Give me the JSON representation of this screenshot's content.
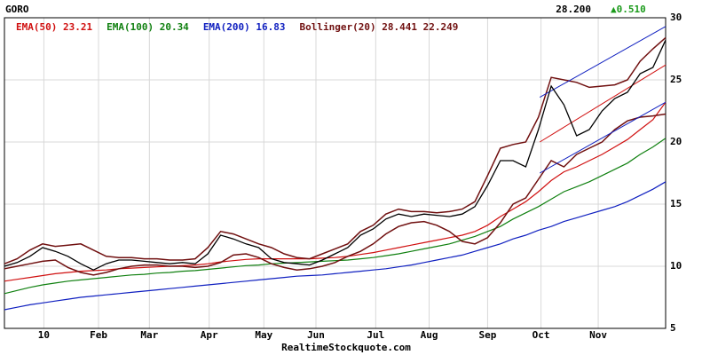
{
  "chart_data": {
    "type": "stock",
    "ticker": "GORO",
    "last": "28.200",
    "change": "▲0.510",
    "change_color": "#1a9a1a",
    "footer": "RealtimeStockquote.com",
    "xlim": [
      0,
      52
    ],
    "xticks": [
      {
        "value": 3.1,
        "label": "10"
      },
      {
        "value": 7.4,
        "label": "Feb"
      },
      {
        "value": 11.4,
        "label": "Mar"
      },
      {
        "value": 16.1,
        "label": "Apr"
      },
      {
        "value": 20.4,
        "label": "May"
      },
      {
        "value": 24.5,
        "label": "Jun"
      },
      {
        "value": 29.2,
        "label": "Jul"
      },
      {
        "value": 33.4,
        "label": "Aug"
      },
      {
        "value": 38,
        "label": "Sep"
      },
      {
        "value": 42.2,
        "label": "Oct"
      },
      {
        "value": 46.7,
        "label": "Nov"
      }
    ],
    "ylim": [
      5,
      30
    ],
    "yticks": [
      5,
      10,
      15,
      20,
      25,
      30
    ],
    "grid": true,
    "x": [
      0,
      1,
      2,
      3,
      4,
      5,
      6,
      7,
      8,
      9,
      10,
      11,
      12,
      13,
      14,
      15,
      16,
      17,
      18,
      19,
      20,
      21,
      22,
      23,
      24,
      25,
      26,
      27,
      28,
      29,
      30,
      31,
      32,
      33,
      34,
      35,
      36,
      37,
      38,
      39,
      40,
      41,
      42,
      43,
      44,
      45,
      46,
      47,
      48,
      49,
      50,
      51,
      52
    ],
    "price": {
      "color": "#000000",
      "values": [
        10,
        10.3,
        10.8,
        11.5,
        11.2,
        10.8,
        10.2,
        9.7,
        10.2,
        10.5,
        10.5,
        10.4,
        10.3,
        10.2,
        10.3,
        10.2,
        11,
        12.5,
        12.2,
        11.8,
        11.5,
        10.6,
        10.3,
        10.2,
        10.1,
        10.5,
        11,
        11.5,
        12.5,
        13,
        13.8,
        14.2,
        14,
        14.2,
        14.1,
        14,
        14.2,
        14.8,
        16.5,
        18.5,
        18.5,
        18,
        21,
        24.5,
        23,
        20.5,
        21,
        22.5,
        23.5,
        24,
        25.5,
        26,
        28.2
      ]
    },
    "series": [
      {
        "name": "EMA(50) 23.21",
        "color": "#d01010",
        "values": [
          8.8,
          8.95,
          9.1,
          9.25,
          9.4,
          9.5,
          9.6,
          9.65,
          9.7,
          9.8,
          9.85,
          9.9,
          9.95,
          10,
          10.05,
          10.1,
          10.2,
          10.35,
          10.45,
          10.55,
          10.6,
          10.6,
          10.6,
          10.6,
          10.6,
          10.65,
          10.7,
          10.8,
          10.95,
          11.1,
          11.3,
          11.5,
          11.7,
          11.9,
          12.1,
          12.3,
          12.5,
          12.8,
          13.3,
          14,
          14.6,
          15.2,
          16,
          16.9,
          17.6,
          18,
          18.5,
          19,
          19.6,
          20.2,
          21,
          21.8,
          23.2
        ]
      },
      {
        "name": "EMA(100) 20.34",
        "color": "#108010",
        "values": [
          7.8,
          8.05,
          8.3,
          8.5,
          8.65,
          8.8,
          8.9,
          9,
          9.1,
          9.2,
          9.3,
          9.35,
          9.45,
          9.5,
          9.6,
          9.65,
          9.75,
          9.85,
          9.95,
          10.05,
          10.1,
          10.2,
          10.25,
          10.3,
          10.35,
          10.4,
          10.45,
          10.5,
          10.6,
          10.7,
          10.85,
          11,
          11.2,
          11.4,
          11.6,
          11.8,
          12.1,
          12.4,
          12.8,
          13.2,
          13.8,
          14.3,
          14.8,
          15.4,
          16,
          16.4,
          16.8,
          17.3,
          17.8,
          18.3,
          19,
          19.6,
          20.3
        ]
      },
      {
        "name": "EMA(200) 16.83",
        "color": "#1020c0",
        "values": [
          6.5,
          6.7,
          6.9,
          7.05,
          7.2,
          7.35,
          7.5,
          7.6,
          7.7,
          7.8,
          7.9,
          8,
          8.1,
          8.2,
          8.3,
          8.4,
          8.5,
          8.6,
          8.7,
          8.8,
          8.9,
          9,
          9.1,
          9.2,
          9.25,
          9.3,
          9.4,
          9.5,
          9.6,
          9.7,
          9.8,
          9.95,
          10.1,
          10.3,
          10.5,
          10.7,
          10.9,
          11.2,
          11.5,
          11.8,
          12.2,
          12.5,
          12.9,
          13.2,
          13.6,
          13.9,
          14.2,
          14.5,
          14.8,
          15.2,
          15.7,
          16.2,
          16.8
        ]
      }
    ],
    "bollinger": {
      "name": "Bollinger(20) 28.441 22.249",
      "color": "#701010",
      "upper": [
        10.2,
        10.6,
        11.3,
        11.8,
        11.6,
        11.7,
        11.8,
        11.3,
        10.8,
        10.7,
        10.7,
        10.6,
        10.6,
        10.5,
        10.5,
        10.6,
        11.5,
        12.8,
        12.6,
        12.2,
        11.8,
        11.5,
        11,
        10.7,
        10.6,
        11,
        11.4,
        11.8,
        12.8,
        13.3,
        14.2,
        14.6,
        14.4,
        14.4,
        14.3,
        14.4,
        14.6,
        15.2,
        17.3,
        19.5,
        19.8,
        20,
        22,
        25.2,
        25,
        24.8,
        24.4,
        24.5,
        24.6,
        25,
        26.5,
        27.5,
        28.4
      ],
      "lower": [
        9.8,
        10,
        10.2,
        10.4,
        10.5,
        9.9,
        9.5,
        9.3,
        9.5,
        9.8,
        10,
        10.1,
        10.1,
        10,
        10,
        9.9,
        10,
        10.3,
        10.9,
        11,
        10.7,
        10.2,
        9.9,
        9.7,
        9.8,
        10,
        10.3,
        10.8,
        11.2,
        11.8,
        12.6,
        13.2,
        13.5,
        13.6,
        13.3,
        12.8,
        12,
        11.8,
        12.3,
        13.5,
        15,
        15.5,
        17,
        18.5,
        18,
        19,
        19.5,
        20,
        21,
        21.7,
        22,
        22.1,
        22.25
      ]
    },
    "trendlines": [
      {
        "color": "#1020c0",
        "x": [
          42.1,
          52
        ],
        "y": [
          23.6,
          29.3
        ]
      },
      {
        "color": "#d01010",
        "x": [
          42.1,
          52
        ],
        "y": [
          20,
          26.2
        ]
      },
      {
        "color": "#1020c0",
        "x": [
          42.1,
          52
        ],
        "y": [
          17.5,
          23.2
        ]
      }
    ]
  }
}
